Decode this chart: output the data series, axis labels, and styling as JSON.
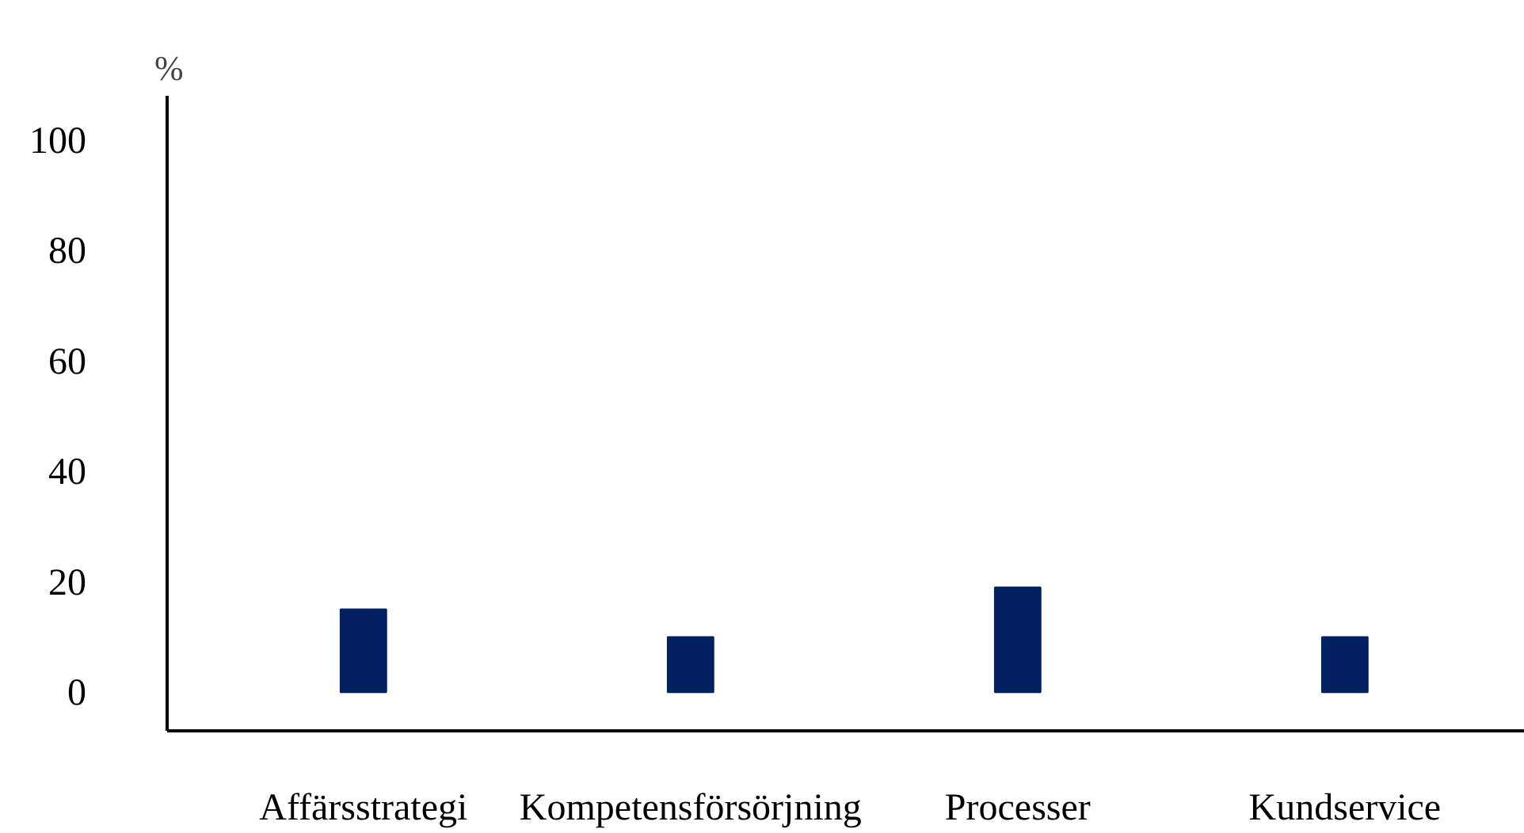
{
  "chart_data": {
    "type": "bar",
    "ylabel": "%",
    "categories": [
      "Affärsstrategi",
      "Kompetensförsörjning",
      "Processer",
      "Kundservice"
    ],
    "values": [
      15,
      10,
      19,
      10
    ],
    "color": "#022060",
    "ylim": [
      -7,
      108
    ],
    "yticks": [
      0,
      20,
      40,
      60,
      80,
      100
    ],
    "grid": false
  }
}
